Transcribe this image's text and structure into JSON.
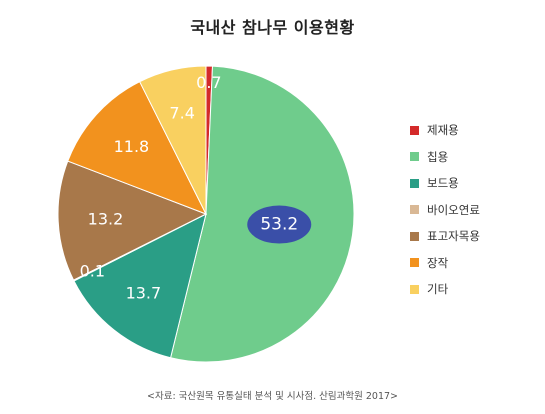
{
  "title": "국내산 참나무 이용현황",
  "source": "<자료: 국산원목 유통실태 분석 및 시사점. 산림과학원 2017>",
  "chart_data": {
    "type": "pie",
    "title": "국내산 참나무 이용현황",
    "units": "%",
    "slices": [
      {
        "label": "제재용",
        "value": 0.7,
        "color": "#d42a2a"
      },
      {
        "label": "칩용",
        "value": 53.2,
        "color": "#6fcc8c"
      },
      {
        "label": "보드용",
        "value": 13.7,
        "color": "#2a9e86"
      },
      {
        "label": "바이오연료",
        "value": 0.1,
        "color": "#d9b895"
      },
      {
        "label": "표고자목용",
        "value": 13.2,
        "color": "#a8784a"
      },
      {
        "label": "장작",
        "value": 11.8,
        "color": "#f2921e"
      },
      {
        "label": "기타",
        "value": 7.4,
        "color": "#f9d060"
      }
    ],
    "legend_position": "right",
    "highlight": {
      "label": "칩용",
      "color": "#3a4fa8"
    }
  }
}
